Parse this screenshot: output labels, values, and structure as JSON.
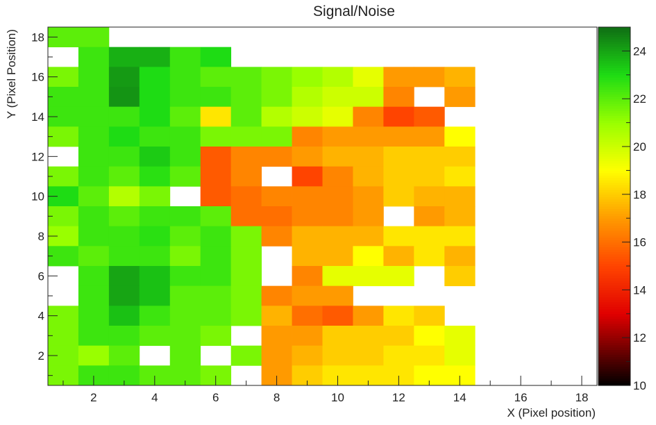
{
  "chart_data": {
    "type": "heatmap",
    "title": "Signal/Noise",
    "xlabel": "X (Pixel position)",
    "ylabel": "Y (Pixel Position)",
    "xlim": [
      0.5,
      18.5
    ],
    "ylim": [
      0.5,
      18.5
    ],
    "xticks": [
      2,
      4,
      6,
      8,
      10,
      12,
      14,
      16,
      18
    ],
    "yticks": [
      2,
      4,
      6,
      8,
      10,
      12,
      14,
      16,
      18
    ],
    "zlim": [
      10,
      25
    ],
    "colorbar_ticks": [
      10,
      12,
      14,
      16,
      18,
      20,
      22,
      24
    ],
    "colormap": [
      {
        "z": 10,
        "color": "#000000"
      },
      {
        "z": 13,
        "color": "#e00000"
      },
      {
        "z": 15,
        "color": "#ff4400"
      },
      {
        "z": 17,
        "color": "#ff9a00"
      },
      {
        "z": 19,
        "color": "#ffff00"
      },
      {
        "z": 21,
        "color": "#99ff00"
      },
      {
        "z": 23,
        "color": "#1edc14"
      },
      {
        "z": 25,
        "color": "#0f6e14"
      }
    ],
    "grid": false,
    "x": [
      1,
      2,
      3,
      4,
      5,
      6,
      7,
      8,
      9,
      10,
      11,
      12,
      13,
      14,
      15,
      16,
      17,
      18
    ],
    "y": [
      18,
      17,
      16,
      15,
      14,
      13,
      12,
      11,
      10,
      9,
      8,
      7,
      6,
      5,
      4,
      3,
      2,
      1
    ],
    "z": [
      [
        22.0,
        22.0,
        null,
        null,
        null,
        null,
        null,
        null,
        null,
        null,
        null,
        null,
        null,
        null,
        null,
        null,
        null,
        null
      ],
      [
        null,
        22.5,
        23.8,
        23.8,
        22.5,
        23.0,
        null,
        null,
        null,
        null,
        null,
        null,
        null,
        null,
        null,
        null,
        null,
        null
      ],
      [
        21.5,
        22.5,
        24.2,
        23.0,
        22.5,
        22.0,
        22.0,
        21.5,
        21.0,
        20.5,
        19.5,
        17.0,
        17.0,
        17.5,
        null,
        null,
        null,
        null
      ],
      [
        22.5,
        22.5,
        24.3,
        23.0,
        22.5,
        22.5,
        22.0,
        21.5,
        20.5,
        20.0,
        20.0,
        16.5,
        null,
        17.0,
        null,
        null,
        null,
        null
      ],
      [
        22.5,
        22.5,
        22.5,
        23.0,
        22.0,
        18.5,
        22.0,
        20.5,
        20.0,
        19.5,
        16.5,
        15.0,
        15.5,
        null,
        null,
        null,
        null,
        null
      ],
      [
        21.5,
        22.5,
        23.0,
        22.5,
        22.5,
        21.5,
        21.5,
        21.5,
        16.5,
        17.0,
        17.0,
        17.0,
        17.0,
        19.0,
        null,
        null,
        null,
        null
      ],
      [
        null,
        22.5,
        22.5,
        23.3,
        22.5,
        15.5,
        16.5,
        16.5,
        17.0,
        17.5,
        17.5,
        18.0,
        18.0,
        18.0,
        null,
        null,
        null,
        null
      ],
      [
        21.5,
        22.5,
        22.0,
        22.8,
        22.0,
        15.5,
        16.5,
        null,
        15.0,
        16.5,
        17.5,
        18.0,
        18.0,
        18.5,
        null,
        null,
        null,
        null
      ],
      [
        23.0,
        22.0,
        20.5,
        21.5,
        null,
        15.5,
        16.0,
        16.5,
        16.5,
        16.5,
        17.0,
        18.0,
        17.5,
        17.5,
        null,
        null,
        null,
        null
      ],
      [
        21.5,
        22.5,
        22.0,
        22.5,
        22.5,
        22.0,
        16.0,
        16.0,
        16.5,
        16.5,
        17.0,
        null,
        17.0,
        17.5,
        null,
        null,
        null,
        null
      ],
      [
        21.0,
        22.5,
        22.5,
        22.8,
        22.0,
        22.5,
        21.5,
        16.5,
        17.5,
        17.5,
        17.5,
        18.5,
        18.5,
        18.5,
        null,
        null,
        null,
        null
      ],
      [
        22.5,
        22.0,
        22.5,
        22.5,
        21.5,
        22.5,
        21.5,
        null,
        17.5,
        17.5,
        19.0,
        17.5,
        18.5,
        17.5,
        null,
        null,
        null,
        null
      ],
      [
        null,
        22.5,
        24.0,
        23.5,
        22.5,
        22.5,
        21.5,
        null,
        16.5,
        19.5,
        19.5,
        19.5,
        null,
        18.0,
        null,
        null,
        null,
        null
      ],
      [
        null,
        22.5,
        24.0,
        23.5,
        22.0,
        22.0,
        21.5,
        16.5,
        17.0,
        17.0,
        null,
        null,
        null,
        null,
        null,
        null,
        null,
        null
      ],
      [
        21.5,
        22.5,
        23.5,
        22.5,
        22.0,
        22.0,
        21.5,
        17.5,
        16.0,
        15.5,
        17.0,
        18.5,
        18.0,
        null,
        null,
        null,
        null,
        null
      ],
      [
        21.5,
        22.5,
        22.5,
        22.0,
        22.0,
        21.5,
        null,
        17.0,
        17.0,
        18.0,
        18.0,
        18.0,
        19.0,
        19.5,
        null,
        null,
        null,
        null
      ],
      [
        21.5,
        21.0,
        22.0,
        null,
        22.0,
        null,
        21.5,
        17.0,
        17.5,
        18.0,
        18.0,
        18.5,
        18.5,
        19.5,
        null,
        null,
        null,
        null
      ],
      [
        21.5,
        22.5,
        22.5,
        22.0,
        22.0,
        21.5,
        null,
        17.0,
        18.0,
        18.5,
        18.5,
        18.5,
        19.0,
        19.0,
        null,
        null,
        null,
        null
      ]
    ]
  }
}
